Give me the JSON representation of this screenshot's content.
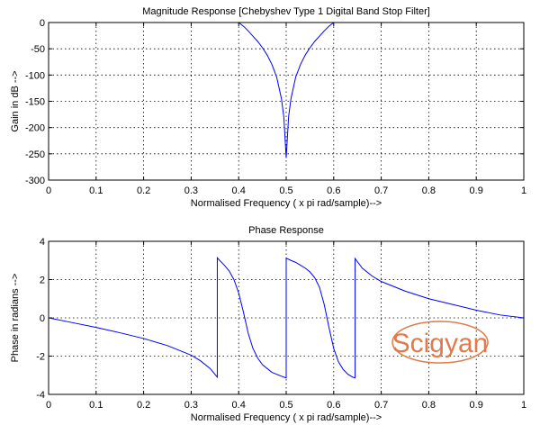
{
  "chart_data": [
    {
      "type": "line",
      "title": "Magnitude Response [Chebyshev Type 1 Digital Band Stop Filter]",
      "xlabel": "Normalised Frequency ( x pi rad/sample)-->",
      "ylabel": "Gain in dB -->",
      "xlim": [
        0,
        1
      ],
      "ylim": [
        -300,
        0
      ],
      "xticks": [
        0,
        0.1,
        0.2,
        0.3,
        0.4,
        0.5,
        0.6,
        0.7,
        0.8,
        0.9,
        1
      ],
      "xtick_labels": [
        "0",
        "0.1",
        "0.2",
        "0.3",
        "0.4",
        "0.5",
        "0.6",
        "0.7",
        "0.8",
        "0.9",
        "1"
      ],
      "yticks": [
        0,
        -50,
        -100,
        -150,
        -200,
        -250,
        -300
      ],
      "ytick_labels": [
        "0",
        "-50",
        "-100",
        "-150",
        "-200",
        "-250",
        "-300"
      ],
      "grid": true,
      "line_color": "#0000ff",
      "series": [
        {
          "x": [
            0,
            0.4,
            0.41,
            0.42,
            0.43,
            0.44,
            0.45,
            0.46,
            0.47,
            0.48,
            0.49,
            0.495,
            0.5,
            0.505,
            0.51,
            0.52,
            0.53,
            0.54,
            0.55,
            0.56,
            0.57,
            0.58,
            0.59,
            0.6,
            1
          ],
          "y": [
            0,
            0,
            -7,
            -16,
            -26,
            -36,
            -48,
            -62,
            -80,
            -104,
            -145,
            -180,
            -258,
            -180,
            -145,
            -104,
            -80,
            -62,
            -48,
            -36,
            -26,
            -16,
            -7,
            0,
            0
          ]
        }
      ]
    },
    {
      "type": "line",
      "title": "Phase Response",
      "xlabel": "Normalised Frequency ( x pi rad/sample)-->",
      "ylabel": "Phase in radians -->",
      "xlim": [
        0,
        1
      ],
      "ylim": [
        -4,
        4
      ],
      "xticks": [
        0,
        0.1,
        0.2,
        0.3,
        0.4,
        0.5,
        0.6,
        0.7,
        0.8,
        0.9,
        1
      ],
      "xtick_labels": [
        "0",
        "0.1",
        "0.2",
        "0.3",
        "0.4",
        "0.5",
        "0.6",
        "0.7",
        "0.8",
        "0.9",
        "1"
      ],
      "yticks": [
        4,
        2,
        0,
        -2,
        -4
      ],
      "ytick_labels": [
        "4",
        "2",
        "0",
        "-2",
        "-4"
      ],
      "grid": true,
      "line_color": "#0000ff",
      "series": [
        {
          "x": [
            0,
            0.05,
            0.1,
            0.15,
            0.2,
            0.25,
            0.3,
            0.32,
            0.34,
            0.355,
            0.355,
            0.36,
            0.37,
            0.38,
            0.39,
            0.4,
            0.41,
            0.42,
            0.43,
            0.44,
            0.45,
            0.47,
            0.49,
            0.5,
            0.5,
            0.51,
            0.52,
            0.53,
            0.54,
            0.55,
            0.56,
            0.57,
            0.58,
            0.59,
            0.6,
            0.61,
            0.62,
            0.63,
            0.64,
            0.645,
            0.645,
            0.66,
            0.68,
            0.7,
            0.75,
            0.8,
            0.85,
            0.9,
            0.95,
            1
          ],
          "y": [
            0,
            -0.25,
            -0.5,
            -0.78,
            -1.08,
            -1.45,
            -1.95,
            -2.25,
            -2.65,
            -3.1,
            3.14,
            3.0,
            2.75,
            2.45,
            2.0,
            1.3,
            0.3,
            -0.8,
            -1.6,
            -2.1,
            -2.45,
            -2.85,
            -3.05,
            -3.14,
            3.12,
            3.0,
            2.9,
            2.75,
            2.6,
            2.4,
            2.1,
            1.6,
            0.7,
            -0.5,
            -1.6,
            -2.3,
            -2.7,
            -2.95,
            -3.1,
            -3.14,
            3.1,
            2.6,
            2.2,
            1.9,
            1.4,
            1.0,
            0.7,
            0.4,
            0.15,
            0
          ]
        }
      ]
    }
  ],
  "watermark": {
    "text": "Scigyan",
    "color": "#e07a4a"
  }
}
